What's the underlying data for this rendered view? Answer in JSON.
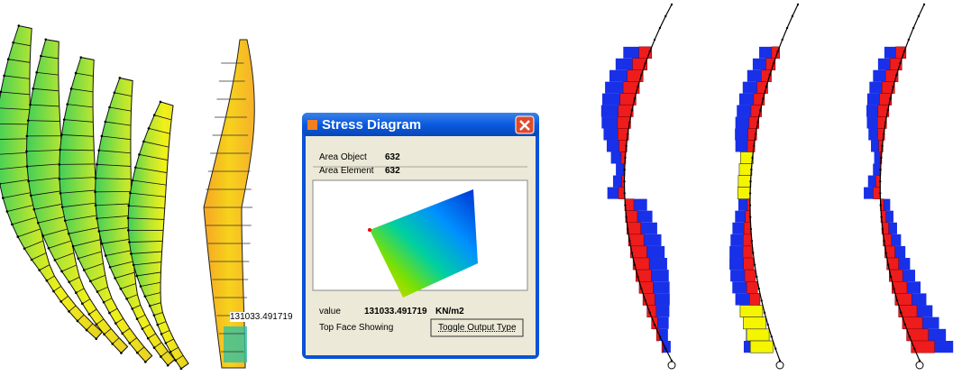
{
  "annotation": {
    "label": 131033.491719
  },
  "dialog": {
    "title": "Stress Diagram",
    "area_object": {
      "label": "Area Object",
      "value": 632
    },
    "area_element": {
      "label": "Area Element",
      "value": 632
    },
    "value": {
      "label": "value",
      "number": 131033.491719,
      "unit": "KN/m2"
    },
    "face": "Top Face Showing",
    "button": "Toggle Output Type"
  }
}
